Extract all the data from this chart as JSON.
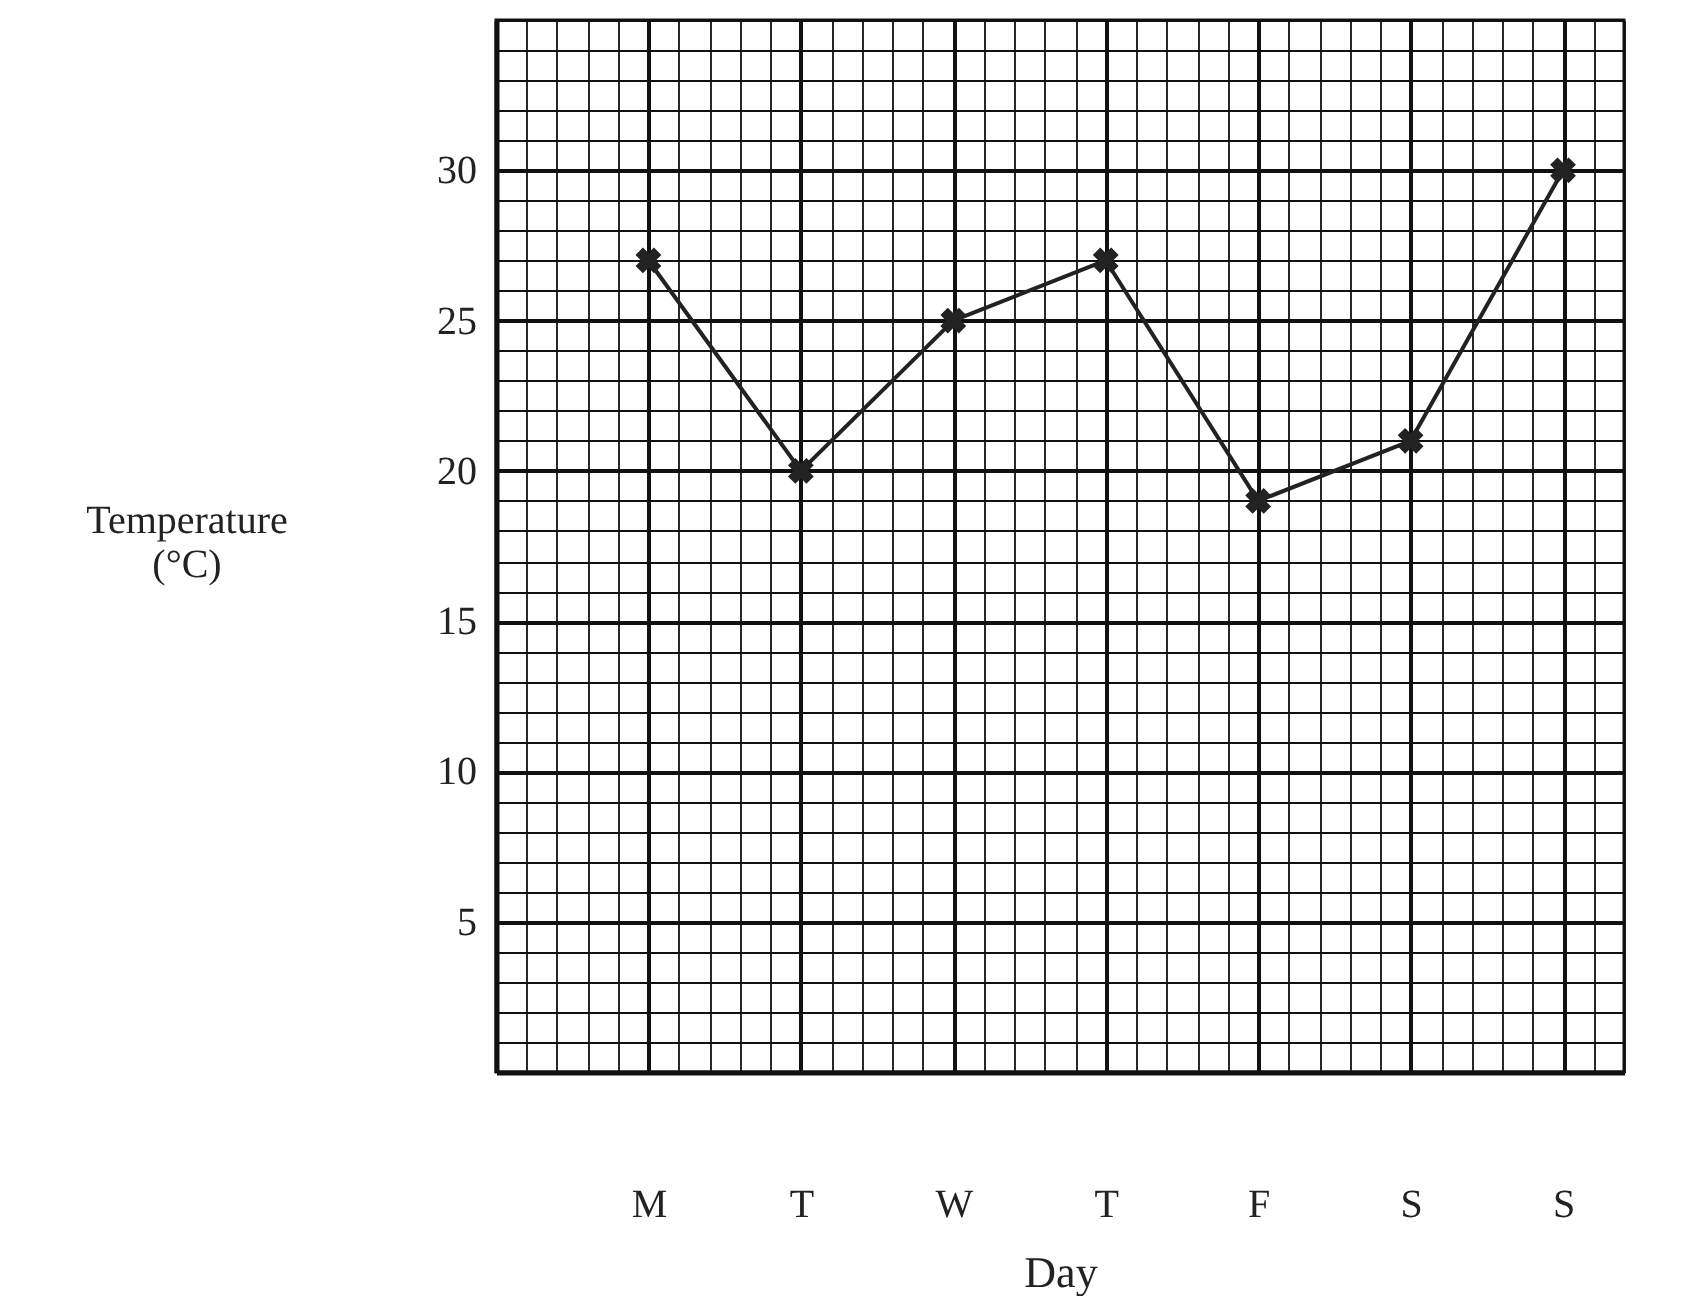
{
  "chart_data": {
    "type": "line",
    "xlabel": "Day",
    "ylabel": "Temperature (°C)",
    "categories": [
      "M",
      "T",
      "W",
      "T",
      "F",
      "S",
      "S"
    ],
    "series": [
      {
        "color": "#222222",
        "values": [
          27,
          20,
          25,
          27,
          19,
          21,
          30
        ]
      }
    ],
    "ylim": [
      0,
      35
    ],
    "yticks": [
      5,
      10,
      15,
      20,
      25,
      30
    ],
    "grid": true,
    "marker": "cross",
    "line_style": "solid"
  }
}
